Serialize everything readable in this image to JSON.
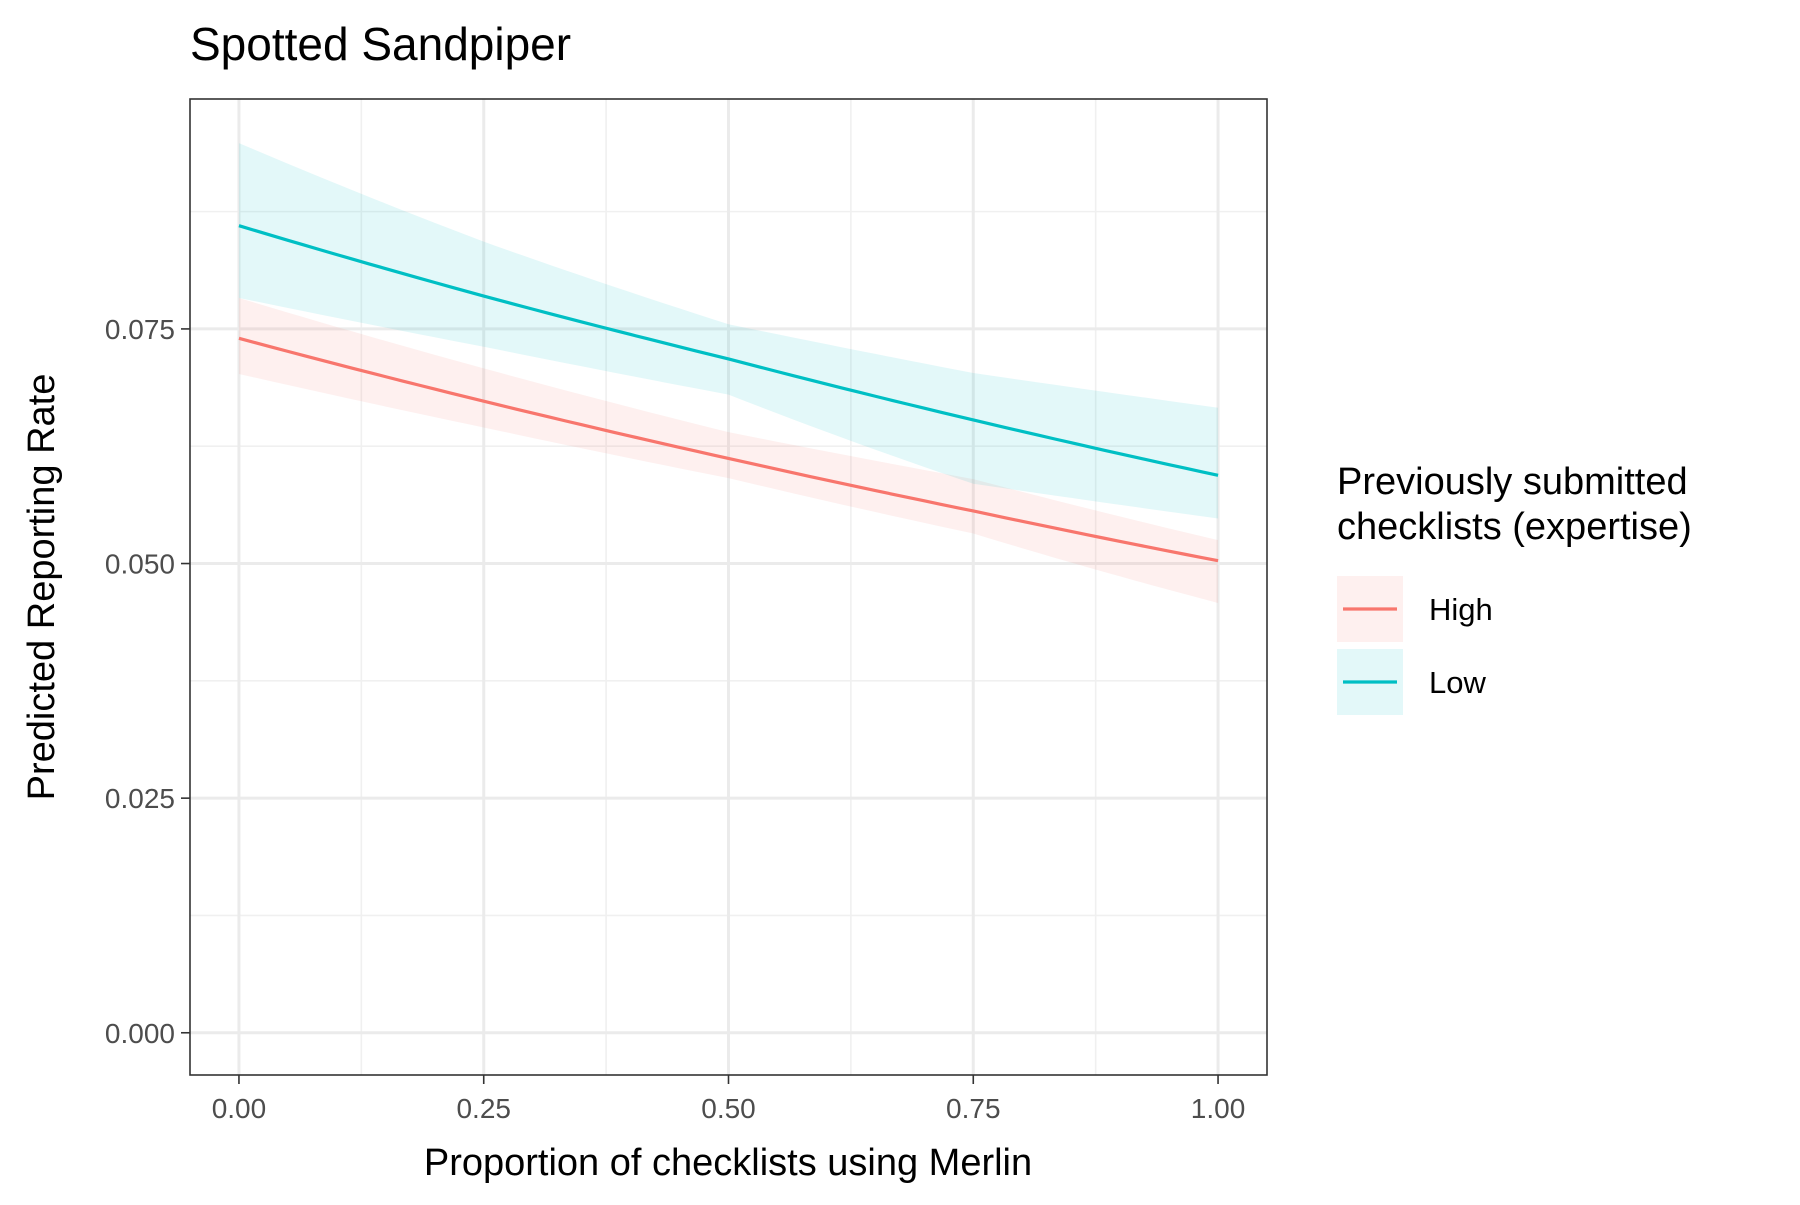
{
  "chart_data": {
    "type": "line",
    "title": "Spotted Sandpiper",
    "xlabel": "Proportion of checklists using Merlin",
    "ylabel": "Predicted Reporting Rate",
    "xlim": [
      -0.05,
      1.05
    ],
    "ylim": [
      -0.0045,
      0.0995
    ],
    "x_ticks": [
      0.0,
      0.25,
      0.5,
      0.75,
      1.0
    ],
    "x_tick_labels": [
      "0.00",
      "0.25",
      "0.50",
      "0.75",
      "1.00"
    ],
    "y_ticks": [
      0.0,
      0.025,
      0.05,
      0.075
    ],
    "y_tick_labels": [
      "0.000",
      "0.025",
      "0.050",
      "0.075"
    ],
    "grid": true,
    "legend": {
      "title": "Previously submitted checklists (expertise)",
      "title_lines": [
        "Previously submitted",
        "checklists (expertise)"
      ],
      "position": "right"
    },
    "x": [
      0.0,
      0.25,
      0.5,
      0.75,
      1.0
    ],
    "series": [
      {
        "name": "High",
        "color": "#F8766D",
        "values": [
          0.074,
          0.0673,
          0.0612,
          0.0556,
          0.0503
        ],
        "lower": [
          0.0702,
          0.0645,
          0.0591,
          0.0532,
          0.0458
        ],
        "upper": [
          0.0783,
          0.0708,
          0.064,
          0.059,
          0.0525
        ]
      },
      {
        "name": "Low",
        "color": "#00BFC4",
        "values": [
          0.086,
          0.0785,
          0.0718,
          0.0653,
          0.0594
        ],
        "lower": [
          0.0783,
          0.0731,
          0.068,
          0.0585,
          0.0548
        ],
        "upper": [
          0.0948,
          0.0843,
          0.0755,
          0.0703,
          0.0666
        ]
      }
    ]
  }
}
